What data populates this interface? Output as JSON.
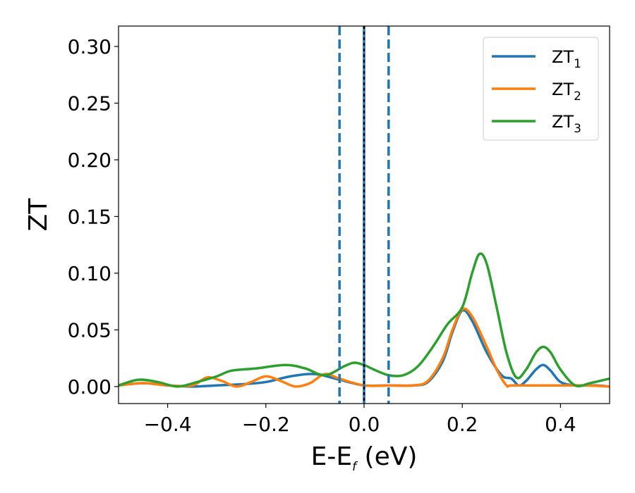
{
  "chart_data": {
    "type": "line",
    "xlabel": "E-E",
    "xlabel_sub": "f",
    "xlabel_unit": " (eV)",
    "ylabel": "ZT",
    "xlim": [
      -0.5,
      0.5
    ],
    "ylim": [
      -0.015,
      0.318
    ],
    "xticks": [
      -0.4,
      -0.2,
      0.0,
      0.2,
      0.4
    ],
    "xtick_labels": [
      "−0.4",
      "−0.2",
      "0.0",
      "0.2",
      "0.4"
    ],
    "yticks": [
      0.0,
      0.05,
      0.1,
      0.15,
      0.2,
      0.25,
      0.3
    ],
    "ytick_labels": [
      "0.00",
      "0.05",
      "0.10",
      "0.15",
      "0.20",
      "0.25",
      "0.30"
    ],
    "grid": false,
    "legend_position": "top-right",
    "vlines": [
      {
        "x": -0.05,
        "style": "dashed",
        "color": "#1f77b4"
      },
      {
        "x": 0.05,
        "style": "dashed",
        "color": "#1f77b4"
      },
      {
        "x": 0.0,
        "style": "solid",
        "color": "#1f77b4"
      },
      {
        "x": 0.0,
        "style": "dotted",
        "color": "#000000"
      }
    ],
    "series": [
      {
        "name": "ZT",
        "sub": "1",
        "color": "#1f77b4",
        "x": [
          -0.5,
          -0.45,
          -0.4,
          -0.35,
          -0.3,
          -0.25,
          -0.2,
          -0.15,
          -0.1,
          -0.05,
          0.0,
          0.05,
          0.1,
          0.13,
          0.16,
          0.18,
          0.2,
          0.22,
          0.25,
          0.28,
          0.3,
          0.315,
          0.33,
          0.35,
          0.365,
          0.38,
          0.4,
          0.43,
          0.47,
          0.5
        ],
        "y": [
          0.001,
          0.003,
          0.001,
          0.0,
          0.001,
          0.002,
          0.004,
          0.009,
          0.011,
          0.006,
          0.001,
          0.001,
          0.001,
          0.004,
          0.022,
          0.048,
          0.067,
          0.058,
          0.03,
          0.01,
          0.007,
          0.001,
          0.005,
          0.015,
          0.019,
          0.014,
          0.004,
          0.001,
          0.001,
          0.0
        ]
      },
      {
        "name": "ZT",
        "sub": "2",
        "color": "#ff7f0e",
        "x": [
          -0.5,
          -0.45,
          -0.4,
          -0.35,
          -0.32,
          -0.29,
          -0.26,
          -0.23,
          -0.2,
          -0.17,
          -0.14,
          -0.11,
          -0.08,
          -0.05,
          0.0,
          0.05,
          0.1,
          0.13,
          0.16,
          0.18,
          0.2,
          0.22,
          0.25,
          0.27,
          0.29,
          0.3,
          0.35,
          0.4,
          0.45,
          0.5
        ],
        "y": [
          0.001,
          0.003,
          0.001,
          0.001,
          0.008,
          0.005,
          0.0,
          0.004,
          0.009,
          0.005,
          0.0,
          0.003,
          0.011,
          0.007,
          0.001,
          0.001,
          0.001,
          0.005,
          0.025,
          0.05,
          0.068,
          0.062,
          0.035,
          0.015,
          0.001,
          0.001,
          0.001,
          0.001,
          0.001,
          0.0
        ]
      },
      {
        "name": "ZT",
        "sub": "3",
        "color": "#2ca02c",
        "x": [
          -0.5,
          -0.46,
          -0.42,
          -0.38,
          -0.34,
          -0.3,
          -0.27,
          -0.22,
          -0.16,
          -0.12,
          -0.08,
          -0.04,
          -0.02,
          0.0,
          0.02,
          0.05,
          0.08,
          0.11,
          0.14,
          0.17,
          0.2,
          0.22,
          0.235,
          0.25,
          0.27,
          0.29,
          0.31,
          0.33,
          0.35,
          0.365,
          0.38,
          0.4,
          0.43,
          0.46,
          0.5
        ],
        "y": [
          0.001,
          0.006,
          0.004,
          0.0,
          0.004,
          0.009,
          0.014,
          0.016,
          0.019,
          0.016,
          0.01,
          0.018,
          0.021,
          0.019,
          0.015,
          0.01,
          0.01,
          0.018,
          0.035,
          0.055,
          0.07,
          0.1,
          0.117,
          0.108,
          0.07,
          0.03,
          0.008,
          0.015,
          0.03,
          0.035,
          0.03,
          0.015,
          0.001,
          0.003,
          0.007
        ]
      }
    ]
  }
}
